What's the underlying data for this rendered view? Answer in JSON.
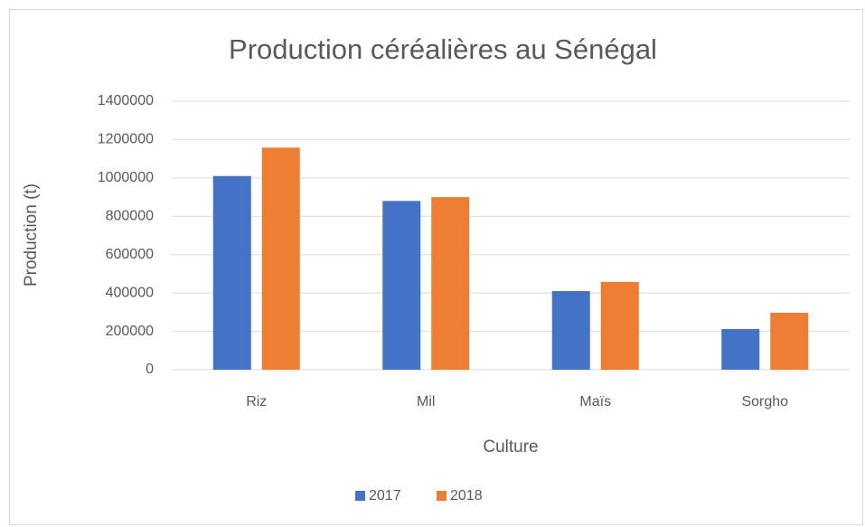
{
  "chart_data": {
    "type": "bar",
    "title": "Production céréalières au Sénégal",
    "x_label": "Culture",
    "y_label": "Production (t)",
    "categories": [
      "Riz",
      "Mil",
      "Maïs",
      "Sorgho"
    ],
    "series": [
      {
        "name": "2017",
        "color": "#4472c4",
        "values": [
          1010000,
          880000,
          410000,
          212000
        ]
      },
      {
        "name": "2018",
        "color": "#ed7d31",
        "values": [
          1158000,
          900000,
          458000,
          297000
        ]
      }
    ],
    "ylim": [
      0,
      1400000
    ],
    "yticks": [
      0,
      200000,
      400000,
      600000,
      800000,
      1000000,
      1200000,
      1400000
    ],
    "grid": true,
    "legend": "bottom"
  }
}
